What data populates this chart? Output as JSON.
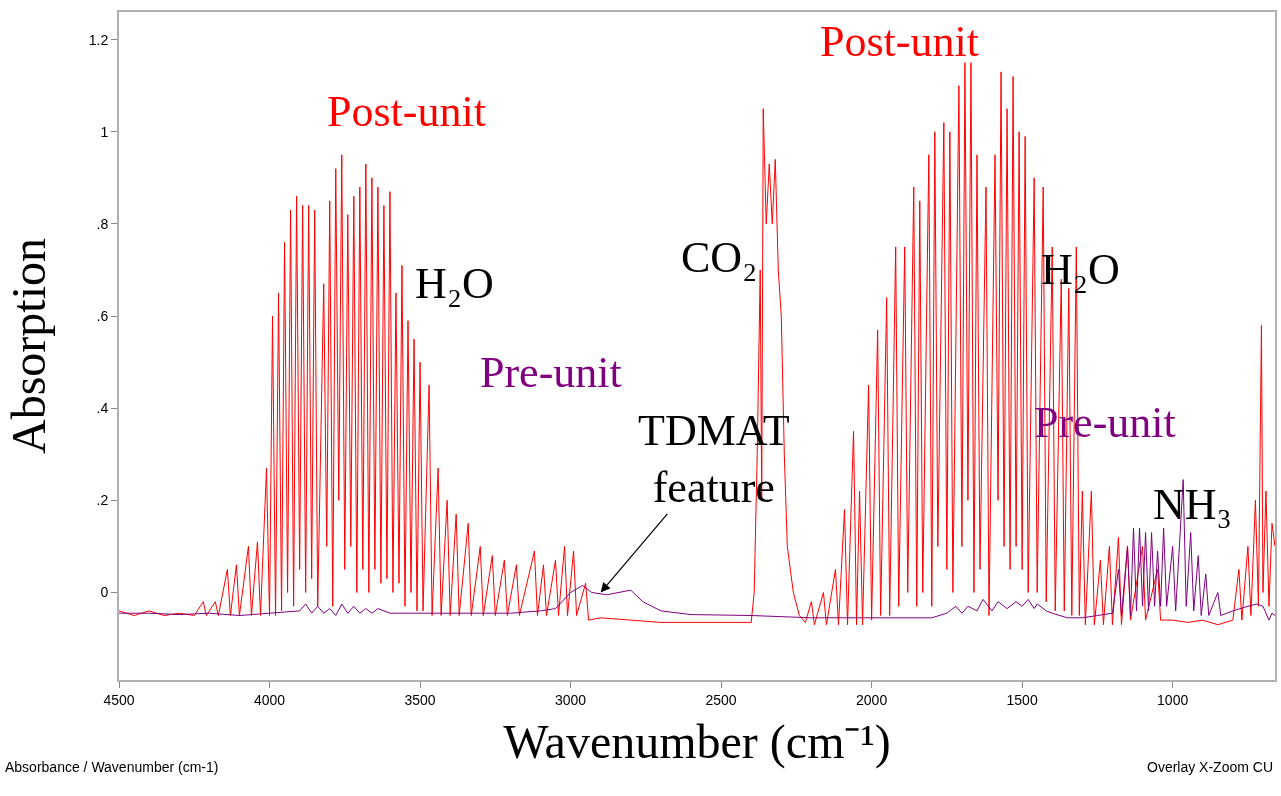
{
  "chart_data": {
    "type": "line",
    "xlabel": "Wavenumber (cm⁻¹)",
    "ylabel": "Absorption",
    "xlim": [
      4500,
      660
    ],
    "xticks": [
      4500,
      4000,
      3500,
      3000,
      2500,
      2000,
      1500,
      1000
    ],
    "ylim": [
      -0.19,
      1.26
    ],
    "yticks": [
      0,
      {
        "value": 0.2,
        "label": ".2"
      },
      {
        "value": 0.4,
        "label": ".4"
      },
      {
        "value": 0.6,
        "label": ".6"
      },
      {
        "value": 0.8,
        "label": ".8"
      },
      1,
      1.2
    ],
    "legend": false,
    "marker": "none",
    "line_style": "solid",
    "series": [
      {
        "name": "Post-unit",
        "color": "#ff0000",
        "x": [
          4500,
          4450,
          4400,
          4350,
          4300,
          4250,
          4220,
          4210,
          4180,
          4170,
          4140,
          4130,
          4110,
          4100,
          4070,
          4060,
          4040,
          4030,
          4010,
          4000,
          3990,
          3980,
          3970,
          3960,
          3950,
          3940,
          3930,
          3920,
          3910,
          3900,
          3890,
          3880,
          3870,
          3860,
          3850,
          3840,
          3820,
          3810,
          3800,
          3790,
          3780,
          3770,
          3760,
          3750,
          3740,
          3730,
          3720,
          3710,
          3700,
          3690,
          3680,
          3670,
          3660,
          3650,
          3640,
          3630,
          3620,
          3610,
          3600,
          3590,
          3580,
          3570,
          3560,
          3550,
          3540,
          3530,
          3520,
          3510,
          3500,
          3490,
          3470,
          3460,
          3440,
          3430,
          3410,
          3400,
          3380,
          3370,
          3340,
          3330,
          3300,
          3290,
          3260,
          3250,
          3220,
          3210,
          3180,
          3170,
          3120,
          3110,
          3090,
          3080,
          3050,
          3040,
          3020,
          3010,
          2990,
          2980,
          2950,
          2940,
          2900,
          2800,
          2700,
          2600,
          2500,
          2400,
          2390,
          2380,
          2370,
          2365,
          2360,
          2350,
          2340,
          2330,
          2320,
          2310,
          2300,
          2290,
          2280,
          2260,
          2240,
          2220,
          2200,
          2190,
          2160,
          2150,
          2120,
          2110,
          2090,
          2080,
          2060,
          2050,
          2040,
          2030,
          2010,
          2000,
          1980,
          1970,
          1950,
          1940,
          1920,
          1910,
          1890,
          1880,
          1860,
          1850,
          1840,
          1830,
          1810,
          1800,
          1790,
          1780,
          1760,
          1750,
          1740,
          1730,
          1710,
          1700,
          1690,
          1680,
          1670,
          1660,
          1650,
          1640,
          1620,
          1610,
          1590,
          1580,
          1570,
          1560,
          1550,
          1540,
          1530,
          1520,
          1510,
          1500,
          1490,
          1480,
          1460,
          1450,
          1430,
          1420,
          1400,
          1390,
          1370,
          1360,
          1345,
          1335,
          1320,
          1310,
          1300,
          1290,
          1270,
          1260,
          1240,
          1230,
          1210,
          1200,
          1180,
          1170,
          1150,
          1140,
          1100,
          1090,
          1050,
          1040,
          1000,
          950,
          900,
          850,
          800,
          780,
          770,
          750,
          740,
          725,
          715,
          705,
          700,
          690,
          680,
          670,
          660
        ],
        "values": [
          -0.04,
          -0.05,
          -0.04,
          -0.05,
          -0.045,
          -0.05,
          -0.02,
          -0.05,
          -0.02,
          -0.05,
          0.05,
          -0.05,
          0.06,
          -0.05,
          0.1,
          -0.05,
          0.11,
          -0.05,
          0.27,
          -0.05,
          0.6,
          -0.05,
          0.65,
          -0.04,
          0.76,
          0.0,
          0.83,
          -0.03,
          0.86,
          0.05,
          0.84,
          0.0,
          0.84,
          0.03,
          0.83,
          -0.03,
          0.67,
          0.1,
          0.85,
          -0.03,
          0.92,
          0.2,
          0.95,
          0.05,
          0.82,
          0.1,
          0.86,
          0.0,
          0.88,
          0.05,
          0.93,
          0.0,
          0.9,
          0.05,
          0.88,
          0.02,
          0.84,
          0.03,
          0.87,
          0.0,
          0.65,
          0.02,
          0.71,
          -0.03,
          0.59,
          0.0,
          0.55,
          -0.04,
          0.5,
          -0.04,
          0.45,
          -0.05,
          0.27,
          -0.05,
          0.2,
          -0.05,
          0.17,
          -0.05,
          0.15,
          -0.05,
          0.1,
          -0.05,
          0.08,
          -0.05,
          0.07,
          -0.05,
          0.06,
          -0.05,
          0.09,
          -0.05,
          0.06,
          -0.05,
          0.07,
          -0.05,
          0.1,
          -0.05,
          0.09,
          -0.05,
          0.02,
          -0.06,
          -0.055,
          -0.06,
          -0.065,
          -0.065,
          -0.065,
          -0.065,
          0.0,
          0.3,
          0.7,
          0.2,
          1.05,
          0.8,
          0.93,
          0.8,
          0.94,
          0.7,
          0.6,
          0.3,
          0.1,
          0.0,
          -0.05,
          -0.065,
          -0.02,
          -0.07,
          0.0,
          -0.07,
          0.05,
          -0.07,
          0.18,
          -0.07,
          0.35,
          -0.07,
          0.22,
          -0.07,
          0.45,
          -0.06,
          0.57,
          -0.05,
          0.64,
          -0.05,
          0.75,
          -0.03,
          0.75,
          0.0,
          0.88,
          -0.03,
          0.85,
          0.0,
          0.95,
          -0.03,
          1.0,
          0.1,
          1.02,
          0.05,
          1.0,
          0.0,
          1.1,
          0.1,
          1.15,
          0.2,
          1.15,
          0.0,
          0.95,
          0.05,
          0.88,
          -0.05,
          0.95,
          0.2,
          1.13,
          0.1,
          1.05,
          0.05,
          1.12,
          0.1,
          1.0,
          0.05,
          0.99,
          0.0,
          0.9,
          0.0,
          0.88,
          -0.02,
          0.75,
          -0.04,
          0.68,
          -0.04,
          0.66,
          -0.05,
          0.75,
          -0.05,
          0.22,
          -0.07,
          0.22,
          -0.07,
          0.07,
          -0.07,
          0.1,
          -0.07,
          0.12,
          -0.07,
          0.1,
          -0.06,
          0.1,
          -0.06,
          0.05,
          -0.06,
          -0.06,
          -0.065,
          -0.06,
          -0.07,
          -0.06,
          0.05,
          -0.06,
          0.1,
          -0.05,
          0.2,
          -0.03,
          0.58,
          0.0,
          0.22,
          -0.03,
          0.15,
          0.1
        ]
      },
      {
        "name": "Pre-unit",
        "color": "#800080",
        "x": [
          4500,
          4400,
          4300,
          4200,
          4100,
          4000,
          3900,
          3880,
          3860,
          3840,
          3820,
          3800,
          3780,
          3760,
          3740,
          3720,
          3700,
          3680,
          3660,
          3640,
          3600,
          3500,
          3400,
          3300,
          3200,
          3100,
          3050,
          3000,
          2960,
          2930,
          2880,
          2800,
          2760,
          2700,
          2600,
          2400,
          2200,
          2000,
          1800,
          1750,
          1720,
          1700,
          1680,
          1650,
          1630,
          1600,
          1580,
          1550,
          1520,
          1500,
          1480,
          1460,
          1450,
          1420,
          1400,
          1350,
          1300,
          1250,
          1200,
          1180,
          1170,
          1150,
          1140,
          1130,
          1120,
          1110,
          1100,
          1090,
          1080,
          1070,
          1060,
          1050,
          1040,
          1030,
          1020,
          1000,
          990,
          975,
          965,
          955,
          940,
          930,
          915,
          905,
          890,
          880,
          850,
          840,
          800,
          750,
          720,
          700,
          680,
          670,
          660
        ],
        "values": [
          -0.045,
          -0.045,
          -0.048,
          -0.045,
          -0.05,
          -0.045,
          -0.04,
          -0.025,
          -0.045,
          -0.03,
          -0.045,
          -0.035,
          -0.05,
          -0.025,
          -0.045,
          -0.03,
          -0.045,
          -0.035,
          -0.045,
          -0.035,
          -0.045,
          -0.045,
          -0.045,
          -0.045,
          -0.045,
          -0.04,
          -0.035,
          0.0,
          0.015,
          0.0,
          -0.005,
          0.005,
          -0.02,
          -0.04,
          -0.048,
          -0.05,
          -0.055,
          -0.055,
          -0.055,
          -0.045,
          -0.03,
          -0.045,
          -0.03,
          -0.04,
          -0.015,
          -0.04,
          -0.02,
          -0.035,
          -0.02,
          -0.03,
          -0.015,
          -0.035,
          -0.025,
          -0.04,
          -0.045,
          -0.055,
          -0.055,
          -0.05,
          -0.045,
          0.05,
          -0.05,
          0.1,
          -0.05,
          0.14,
          -0.04,
          0.14,
          -0.03,
          0.13,
          -0.04,
          0.13,
          -0.03,
          0.09,
          -0.03,
          0.14,
          -0.03,
          0.1,
          -0.04,
          0.13,
          0.245,
          -0.03,
          0.13,
          -0.04,
          0.08,
          -0.05,
          0.04,
          -0.05,
          0.0,
          -0.05,
          -0.04,
          -0.03,
          -0.025,
          -0.03,
          -0.06,
          -0.045,
          -0.05
        ]
      }
    ],
    "annotations": [
      "H₂O",
      "CO₂",
      "H₂O",
      "NH₃",
      {
        "text": "TDMAT\nfeature",
        "x": 2900,
        "y": 0.0
      },
      "Absorbance / Wavenumber (cm-1)",
      "Overlay X-Zoom CU"
    ]
  }
}
